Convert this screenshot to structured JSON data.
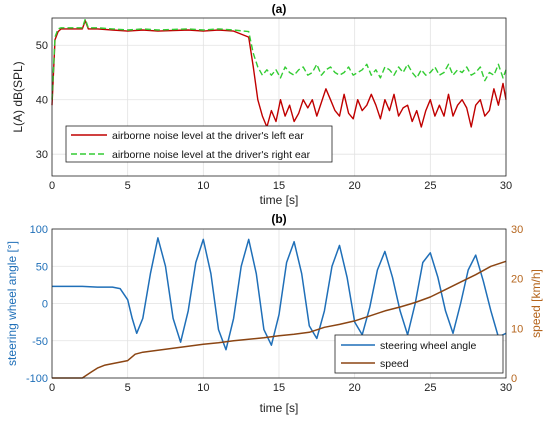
{
  "chart_data": [
    {
      "type": "line",
      "title": "(a)",
      "xlabel": "time [s]",
      "ylabel": "L(A) dB(SPL)",
      "xlim": [
        0,
        30
      ],
      "ylim": [
        26,
        55
      ],
      "xticks": [
        0,
        5,
        10,
        15,
        20,
        25,
        30
      ],
      "yticks": [
        30,
        40,
        50
      ],
      "grid": true,
      "legend_position": "bottom-left",
      "series": [
        {
          "name": "airborne noise level at the driver's left ear",
          "color": "#c00000",
          "style": "solid",
          "x": [
            0,
            0.2,
            0.4,
            0.6,
            1,
            2,
            2.2,
            2.4,
            3,
            4,
            5,
            6,
            7,
            8,
            9,
            10,
            11,
            12,
            13,
            13.3,
            13.6,
            13.9,
            14.2,
            14.5,
            14.8,
            15.1,
            15.4,
            15.7,
            16,
            16.3,
            16.6,
            16.9,
            17.2,
            17.5,
            17.8,
            18.1,
            18.4,
            18.7,
            19,
            19.3,
            19.6,
            19.9,
            20.2,
            20.5,
            20.8,
            21.1,
            21.4,
            21.7,
            22,
            22.3,
            22.6,
            22.9,
            23.2,
            23.5,
            23.8,
            24.1,
            24.4,
            24.7,
            25,
            25.3,
            25.6,
            25.9,
            26.2,
            26.5,
            26.8,
            27.1,
            27.4,
            27.7,
            28,
            28.3,
            28.6,
            28.9,
            29.2,
            29.5,
            29.8,
            30
          ],
          "y": [
            39,
            51,
            52.5,
            53,
            53,
            53,
            54.5,
            53,
            53,
            52.8,
            52.6,
            52.8,
            52.6,
            52.7,
            52.8,
            52.6,
            52.8,
            52.6,
            51.5,
            46,
            40,
            37,
            35,
            38,
            36,
            40,
            37,
            39,
            36,
            37.5,
            40,
            38.5,
            40,
            37,
            39.5,
            42,
            40,
            38,
            37,
            41,
            37.5,
            36.5,
            40,
            38,
            39,
            41,
            39,
            36.5,
            40,
            38,
            41,
            37,
            38.5,
            39,
            36,
            38,
            35,
            38,
            40,
            37,
            39,
            37,
            41,
            37,
            39,
            40,
            38.5,
            35,
            39,
            40,
            37,
            38,
            42,
            39,
            43,
            40
          ]
        },
        {
          "name": "airborne noise level at the driver's right ear",
          "color": "#33cc33",
          "style": "dashed",
          "x": [
            0,
            0.2,
            0.4,
            0.6,
            1,
            2,
            2.2,
            2.4,
            3,
            4,
            5,
            6,
            7,
            8,
            9,
            10,
            11,
            12,
            13,
            13.3,
            13.6,
            13.9,
            14.2,
            14.5,
            14.8,
            15.1,
            15.4,
            15.7,
            16,
            16.3,
            16.6,
            16.9,
            17.2,
            17.5,
            17.8,
            18.1,
            18.4,
            18.7,
            19,
            19.3,
            19.6,
            19.9,
            20.2,
            20.5,
            20.8,
            21.1,
            21.4,
            21.7,
            22,
            22.3,
            22.6,
            22.9,
            23.2,
            23.5,
            23.8,
            24.1,
            24.4,
            24.7,
            25,
            25.3,
            25.6,
            25.9,
            26.2,
            26.5,
            26.8,
            27.1,
            27.4,
            27.7,
            28,
            28.3,
            28.6,
            28.9,
            29.2,
            29.5,
            29.8,
            30
          ],
          "y": [
            40,
            51.5,
            53,
            53.2,
            53.2,
            53.2,
            54.8,
            53.2,
            53.2,
            53,
            52.8,
            53,
            52.8,
            52.9,
            53,
            52.8,
            53,
            52.8,
            52.5,
            48.5,
            46,
            44.5,
            45.5,
            44.5,
            45.5,
            44,
            46,
            45,
            44.5,
            45.5,
            46,
            44.5,
            45,
            46.5,
            44.5,
            45.5,
            46,
            45,
            44.5,
            45,
            46,
            44.5,
            45,
            45.5,
            46.5,
            44.5,
            45.5,
            44,
            46,
            45.5,
            44.5,
            46,
            45,
            46.5,
            45,
            44,
            45.5,
            44.5,
            45,
            46,
            44.5,
            45,
            46.5,
            44.5,
            45.5,
            45,
            46,
            44.5,
            45,
            46,
            43.5,
            45,
            44.5,
            46.5,
            44,
            45.5
          ]
        }
      ]
    },
    {
      "type": "line",
      "title": "(b)",
      "xlabel": "time [s]",
      "ylabel": "steering wheel angle [°]",
      "y2label": "speed [km/h]",
      "xlim": [
        0,
        30
      ],
      "ylim": [
        -100,
        100
      ],
      "y2lim": [
        0,
        30
      ],
      "xticks": [
        0,
        5,
        10,
        15,
        20,
        25,
        30
      ],
      "yticks": [
        -100,
        -50,
        0,
        50,
        100
      ],
      "y2ticks": [
        0,
        10,
        20,
        30
      ],
      "grid": true,
      "legend_position": "bottom-right",
      "series": [
        {
          "name": "steering wheel angle",
          "axis": "left",
          "color": "#1f6fb8",
          "x": [
            0,
            1,
            2,
            3,
            4,
            4.5,
            5,
            5.3,
            5.6,
            6,
            6.5,
            7,
            7.5,
            8,
            8.5,
            9,
            9.5,
            10,
            10.5,
            11,
            11.5,
            12,
            12.5,
            13,
            13.5,
            14,
            14.5,
            15,
            15.5,
            16,
            16.5,
            17,
            17.5,
            18,
            18.5,
            19,
            19.5,
            20,
            20.5,
            21,
            21.5,
            22,
            22.5,
            23,
            23.5,
            24,
            24.5,
            25,
            25.5,
            26,
            26.5,
            27,
            27.5,
            28,
            28.5,
            29,
            29.5,
            30
          ],
          "y": [
            23,
            23,
            23,
            22,
            22,
            20,
            5,
            -20,
            -40,
            -20,
            40,
            88,
            50,
            -20,
            -52,
            -10,
            55,
            86,
            40,
            -35,
            -62,
            -20,
            50,
            86,
            40,
            -35,
            -56,
            -15,
            55,
            83,
            40,
            -30,
            -47,
            -10,
            50,
            78,
            35,
            -25,
            -42,
            -5,
            45,
            70,
            35,
            -10,
            -42,
            0,
            55,
            68,
            35,
            -10,
            -40,
            0,
            45,
            65,
            30,
            -10,
            -45,
            -40
          ]
        },
        {
          "name": "speed",
          "axis": "right",
          "color": "#8b4513",
          "x": [
            0,
            2,
            2.2,
            2.6,
            3,
            3.5,
            4,
            5,
            5.5,
            6,
            7,
            8,
            9,
            10,
            11,
            12,
            13,
            14,
            15,
            16,
            17,
            18,
            19,
            20,
            21,
            22,
            23,
            24,
            25,
            26,
            27,
            28,
            29,
            30
          ],
          "y": [
            0,
            0,
            0.4,
            1.2,
            2,
            2.6,
            2.9,
            3.5,
            4.8,
            5.2,
            5.6,
            6,
            6.4,
            6.8,
            7.1,
            7.5,
            7.8,
            8.1,
            8.5,
            8.8,
            9.2,
            10.2,
            10.8,
            11.5,
            12.5,
            13.5,
            14.3,
            15.2,
            16.3,
            17.8,
            19.3,
            20.8,
            22.5,
            23.5
          ]
        }
      ]
    }
  ]
}
